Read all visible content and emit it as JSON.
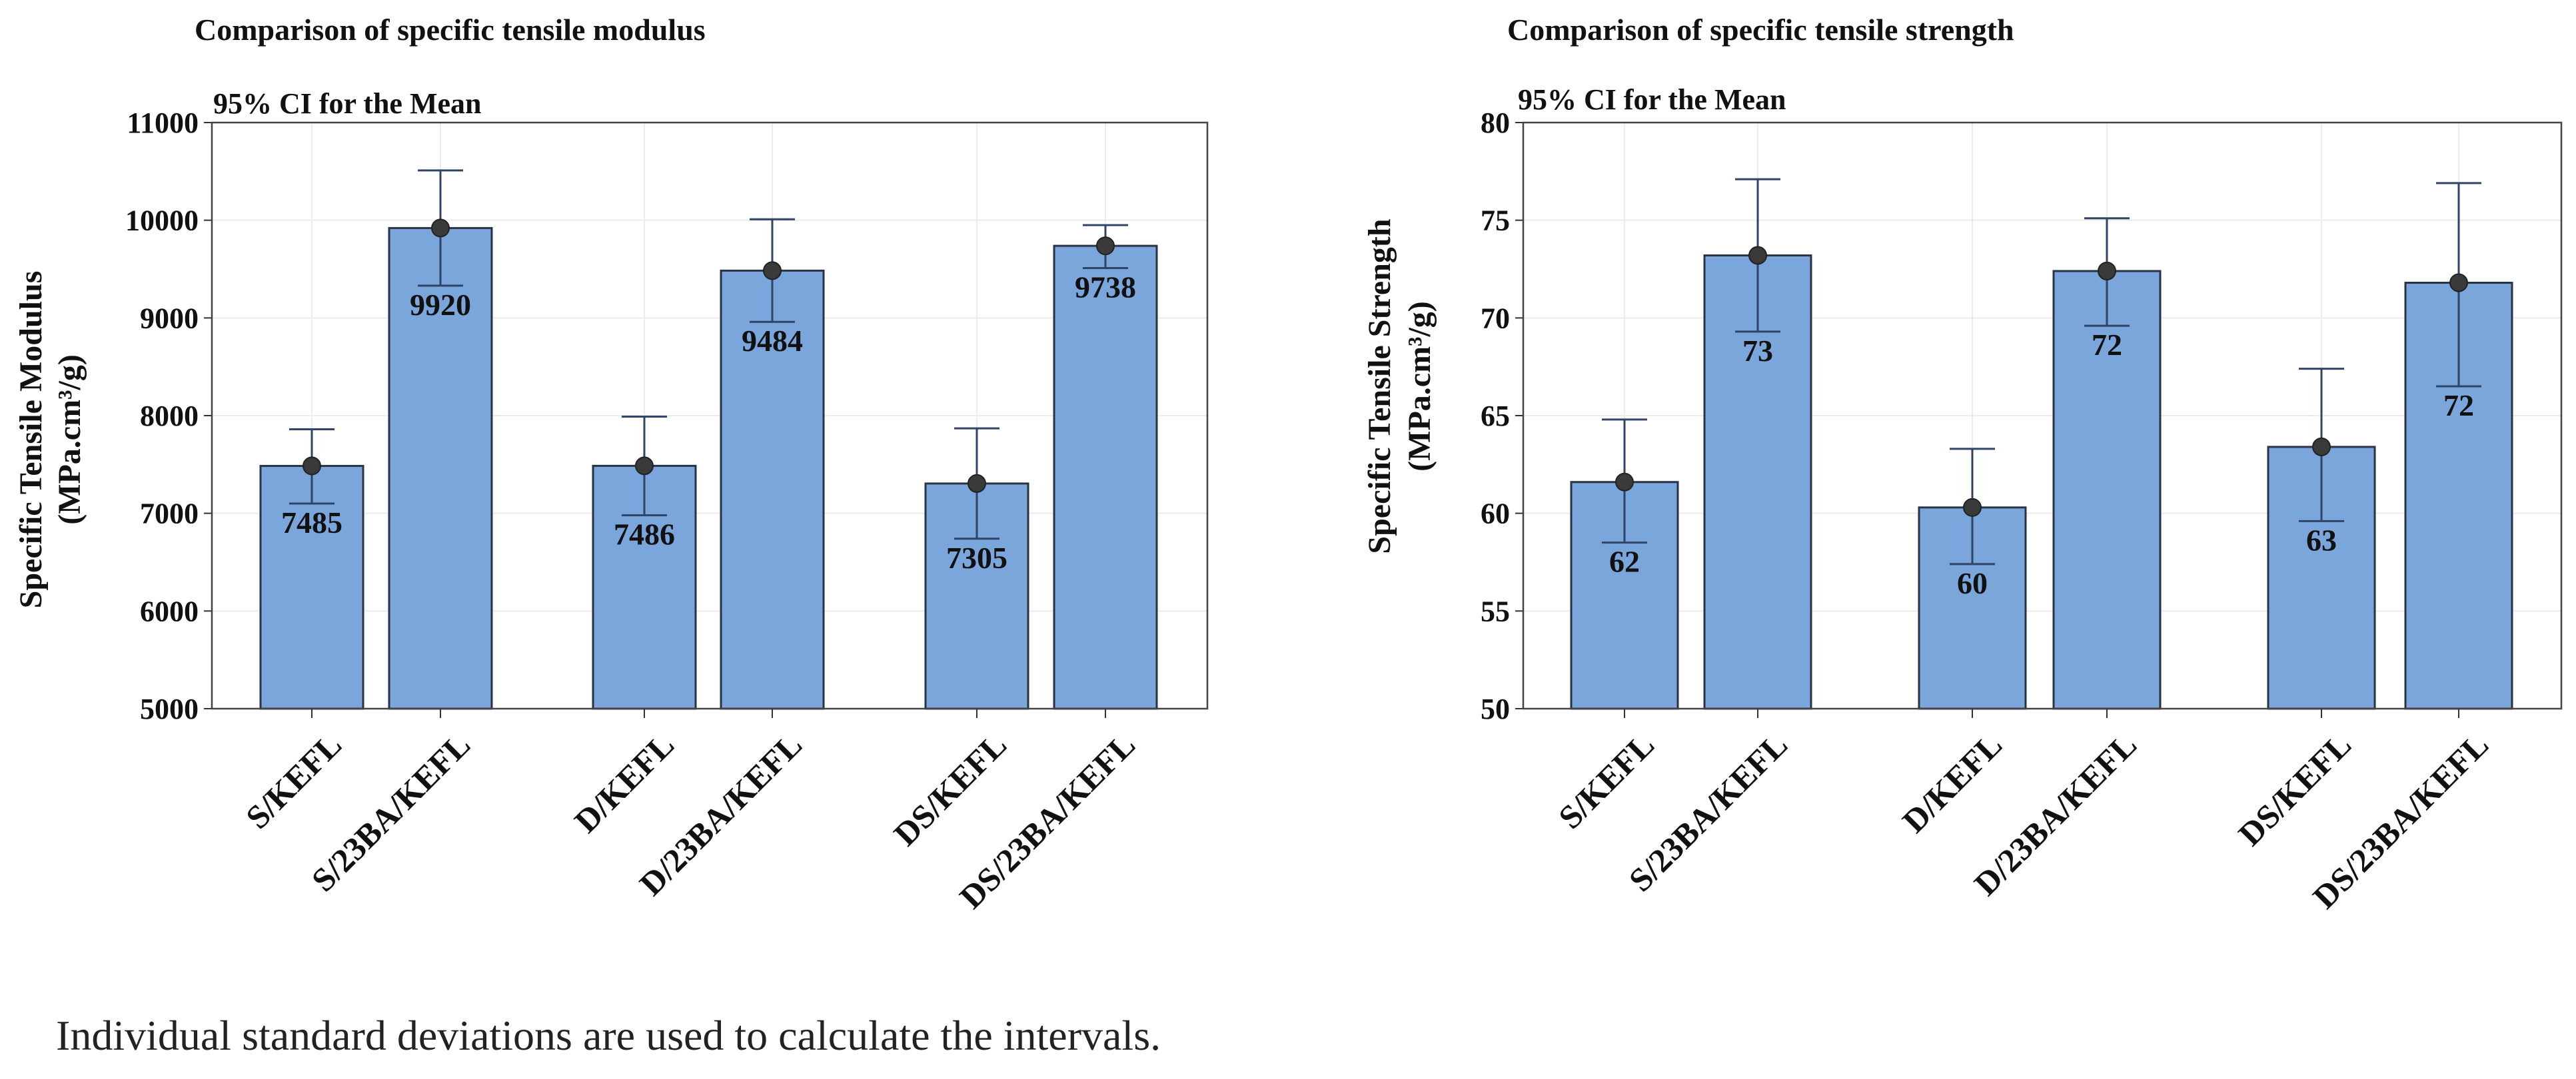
{
  "footer_note": "Individual standard deviations are used to calculate the intervals.",
  "chart_data": [
    {
      "type": "bar",
      "title": "Comparison of specific tensile modulus",
      "subtitle": "95% CI for the Mean",
      "ylabel": [
        "Specific Tensile Modulus",
        "(MPa.cm³/g)"
      ],
      "xlabel": "",
      "ylim": [
        5000,
        11000
      ],
      "yticks": [
        5000,
        6000,
        7000,
        8000,
        9000,
        10000,
        11000
      ],
      "categories": [
        "S/KEFL",
        "S/23BA/KEFL",
        "D/KEFL",
        "D/23BA/KEFL",
        "DS/KEFL",
        "DS/23BA/KEFL"
      ],
      "groups": [
        [
          0,
          1
        ],
        [
          2,
          3
        ],
        [
          4,
          5
        ]
      ],
      "values": [
        7485,
        9920,
        7486,
        9484,
        7305,
        9738
      ],
      "ci_lower": [
        7100,
        9330,
        6980,
        8960,
        6740,
        9510
      ],
      "ci_upper": [
        7860,
        10510,
        7990,
        10010,
        7870,
        9950
      ],
      "data_labels": [
        "7485",
        "9920",
        "7486",
        "9484",
        "7305",
        "9738"
      ],
      "bar_color": "#7BA6DC",
      "grid": true
    },
    {
      "type": "bar",
      "title": "Comparison of specific tensile strength",
      "subtitle": "95% CI for the Mean",
      "ylabel": [
        "Specific Tensile Strength",
        "(MPa.cm³/g)"
      ],
      "xlabel": "",
      "ylim": [
        50,
        80
      ],
      "yticks": [
        50,
        55,
        60,
        65,
        70,
        75,
        80
      ],
      "categories": [
        "S/KEFL",
        "S/23BA/KEFL",
        "D/KEFL",
        "D/23BA/KEFL",
        "DS/KEFL",
        "DS/23BA/KEFL"
      ],
      "groups": [
        [
          0,
          1
        ],
        [
          2,
          3
        ],
        [
          4,
          5
        ]
      ],
      "values": [
        61.6,
        73.2,
        60.3,
        72.4,
        63.4,
        71.8
      ],
      "ci_lower": [
        58.5,
        69.3,
        57.4,
        69.6,
        59.6,
        66.5
      ],
      "ci_upper": [
        64.8,
        77.1,
        63.3,
        75.1,
        67.4,
        76.9
      ],
      "data_labels": [
        "62",
        "73",
        "60",
        "72",
        "63",
        "72"
      ],
      "bar_color": "#7BA6DC",
      "grid": true
    }
  ]
}
